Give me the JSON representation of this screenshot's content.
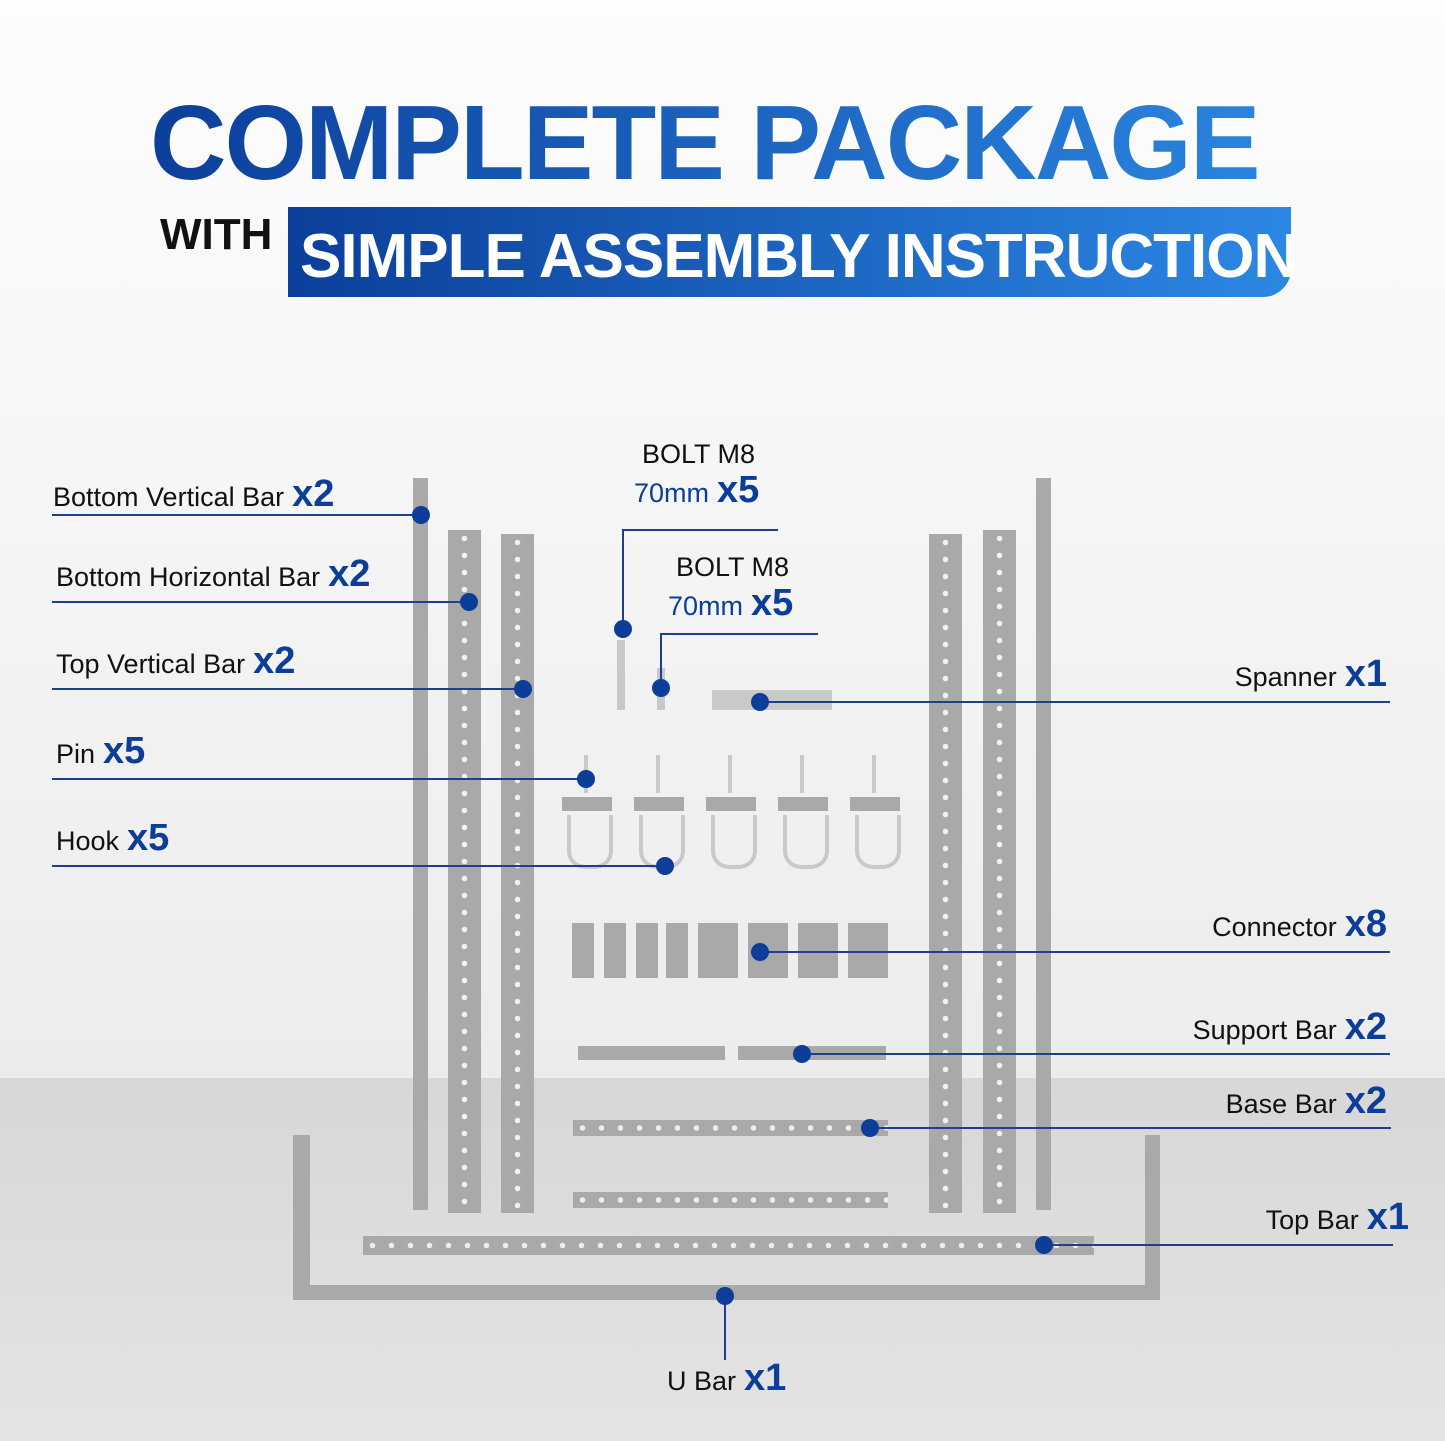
{
  "header": {
    "title": "COMPLETE PACKAGE",
    "with": "WITH",
    "subtitle": "SIMPLE ASSEMBLY INSTRUCTION"
  },
  "callouts": {
    "bottom_vertical_bar": {
      "label": "Bottom Vertical Bar",
      "count": "x2"
    },
    "bottom_horizontal_bar": {
      "label": "Bottom Horizontal Bar",
      "count": "x2"
    },
    "top_vertical_bar": {
      "label": "Top Vertical Bar",
      "count": "x2"
    },
    "pin": {
      "label": "Pin",
      "count": "x5"
    },
    "hook": {
      "label": "Hook",
      "count": "x5"
    },
    "bolt_1": {
      "label": "BOLT M8",
      "size": "70mm",
      "count": "x5"
    },
    "bolt_2": {
      "label": "BOLT M8",
      "size": "70mm",
      "count": "x5"
    },
    "spanner": {
      "label": "Spanner",
      "count": "x1"
    },
    "connector": {
      "label": "Connector",
      "count": "x8"
    },
    "support_bar": {
      "label": "Support Bar",
      "count": "x2"
    },
    "base_bar": {
      "label": "Base Bar",
      "count": "x2"
    },
    "top_bar": {
      "label": "Top Bar",
      "count": "x1"
    },
    "u_bar": {
      "label": "U Bar",
      "count": "x1"
    }
  },
  "colors": {
    "accent": "#0b3d99",
    "gradient_start": "#0c3f9c",
    "gradient_end": "#2b86e0",
    "parts": "#a9a9a9"
  }
}
